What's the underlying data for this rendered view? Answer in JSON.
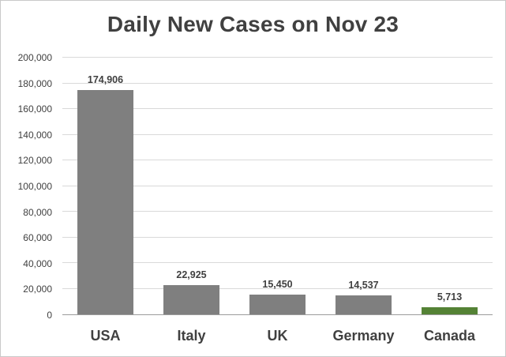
{
  "chart_data": {
    "type": "bar",
    "title": "Daily New Cases on Nov 23",
    "xlabel": "",
    "ylabel": "",
    "categories": [
      "USA",
      "Italy",
      "UK",
      "Germany",
      "Canada"
    ],
    "values": [
      174906,
      22925,
      15450,
      14537,
      5713
    ],
    "value_labels": [
      "174,906",
      "22,925",
      "15,450",
      "14,537",
      "5,713"
    ],
    "bar_colors": [
      "#7f7f7f",
      "#7f7f7f",
      "#7f7f7f",
      "#7f7f7f",
      "#548235"
    ],
    "ylim": [
      0,
      200000
    ],
    "ytick_interval": 20000,
    "yticks": [
      {
        "value": 0,
        "label": "0"
      },
      {
        "value": 20000,
        "label": "20,000"
      },
      {
        "value": 40000,
        "label": "40,000"
      },
      {
        "value": 60000,
        "label": "60,000"
      },
      {
        "value": 80000,
        "label": "80,000"
      },
      {
        "value": 100000,
        "label": "100,000"
      },
      {
        "value": 120000,
        "label": "120,000"
      },
      {
        "value": 140000,
        "label": "140,000"
      },
      {
        "value": 160000,
        "label": "160,000"
      },
      {
        "value": 180000,
        "label": "180,000"
      },
      {
        "value": 200000,
        "label": "200,000"
      }
    ],
    "grid": "horizontal",
    "legend": "none"
  },
  "colors": {
    "background": "#ffffff",
    "frame_border": "#c9c9c9",
    "title": "#404040",
    "tick_label": "#404040",
    "value_label": "#404040",
    "category_label": "#404040",
    "gridline": "#d9d9d9",
    "axis_line": "#9b9b9b"
  }
}
